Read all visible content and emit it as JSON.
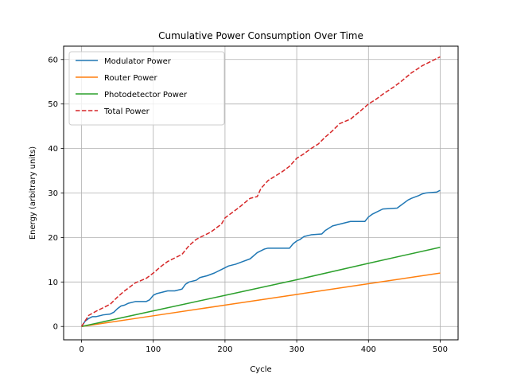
{
  "chart_data": {
    "type": "line",
    "title": "Cumulative Power Consumption Over Time",
    "xlabel": "Cycle",
    "ylabel": "Energy (arbitrary units)",
    "xlim": [
      -25,
      525
    ],
    "ylim": [
      -3,
      63
    ],
    "xticks": [
      0,
      100,
      200,
      300,
      400,
      500
    ],
    "yticks": [
      0,
      10,
      20,
      30,
      40,
      50,
      60
    ],
    "grid": true,
    "legend_position": "upper left",
    "series": [
      {
        "name": "Modulator Power",
        "color": "#1f77b4",
        "style": "solid",
        "x": [
          0,
          5,
          10,
          15,
          20,
          30,
          40,
          45,
          50,
          55,
          60,
          65,
          75,
          90,
          95,
          100,
          105,
          110,
          120,
          130,
          140,
          145,
          150,
          160,
          165,
          175,
          185,
          195,
          200,
          205,
          215,
          225,
          235,
          245,
          250,
          255,
          260,
          275,
          290,
          295,
          300,
          305,
          310,
          320,
          335,
          340,
          350,
          360,
          365,
          375,
          395,
          400,
          405,
          410,
          420,
          440,
          445,
          450,
          455,
          460,
          470,
          475,
          480,
          495,
          500
        ],
        "y": [
          0,
          1.2,
          1.8,
          2.2,
          2.2,
          2.6,
          2.8,
          3.2,
          4.0,
          4.6,
          4.8,
          5.2,
          5.6,
          5.6,
          6.0,
          7.0,
          7.4,
          7.6,
          8.0,
          8.0,
          8.4,
          9.5,
          10.0,
          10.4,
          11.0,
          11.4,
          12.0,
          12.8,
          13.2,
          13.6,
          14.0,
          14.6,
          15.2,
          16.6,
          17.0,
          17.4,
          17.6,
          17.6,
          17.6,
          18.6,
          19.2,
          19.6,
          20.2,
          20.6,
          20.8,
          21.6,
          22.6,
          23.0,
          23.2,
          23.6,
          23.6,
          24.6,
          25.2,
          25.6,
          26.4,
          26.6,
          27.2,
          27.8,
          28.4,
          28.8,
          29.4,
          29.8,
          30.0,
          30.2,
          30.6
        ]
      },
      {
        "name": "Router Power",
        "color": "#ff7f0e",
        "style": "solid",
        "x": [
          0,
          100,
          200,
          300,
          400,
          500
        ],
        "y": [
          0,
          2.4,
          4.8,
          7.2,
          9.6,
          12.0
        ]
      },
      {
        "name": "Photodetector Power",
        "color": "#2ca02c",
        "style": "solid",
        "x": [
          0,
          100,
          200,
          300,
          400,
          500
        ],
        "y": [
          0,
          3.5,
          7.0,
          10.5,
          14.2,
          17.8
        ]
      },
      {
        "name": "Total Power",
        "color": "#d62728",
        "style": "dashed",
        "x": [
          0,
          10,
          20,
          40,
          50,
          60,
          75,
          90,
          100,
          110,
          120,
          140,
          150,
          160,
          180,
          195,
          200,
          210,
          220,
          235,
          245,
          250,
          260,
          280,
          290,
          300,
          310,
          320,
          330,
          340,
          350,
          360,
          375,
          390,
          400,
          410,
          420,
          435,
          445,
          460,
          475,
          490,
          500
        ],
        "y": [
          0,
          2.5,
          3.4,
          5.0,
          6.6,
          8.0,
          9.8,
          10.8,
          12.0,
          13.4,
          14.6,
          16.2,
          18.2,
          19.6,
          21.2,
          23.0,
          24.4,
          25.6,
          26.8,
          28.8,
          29.2,
          31.0,
          32.8,
          34.8,
          36.0,
          37.8,
          38.8,
          40.0,
          41.0,
          42.6,
          44.0,
          45.6,
          46.6,
          48.6,
          50.0,
          51.0,
          52.2,
          53.8,
          55.0,
          57.0,
          58.6,
          59.8,
          60.6
        ]
      }
    ]
  }
}
